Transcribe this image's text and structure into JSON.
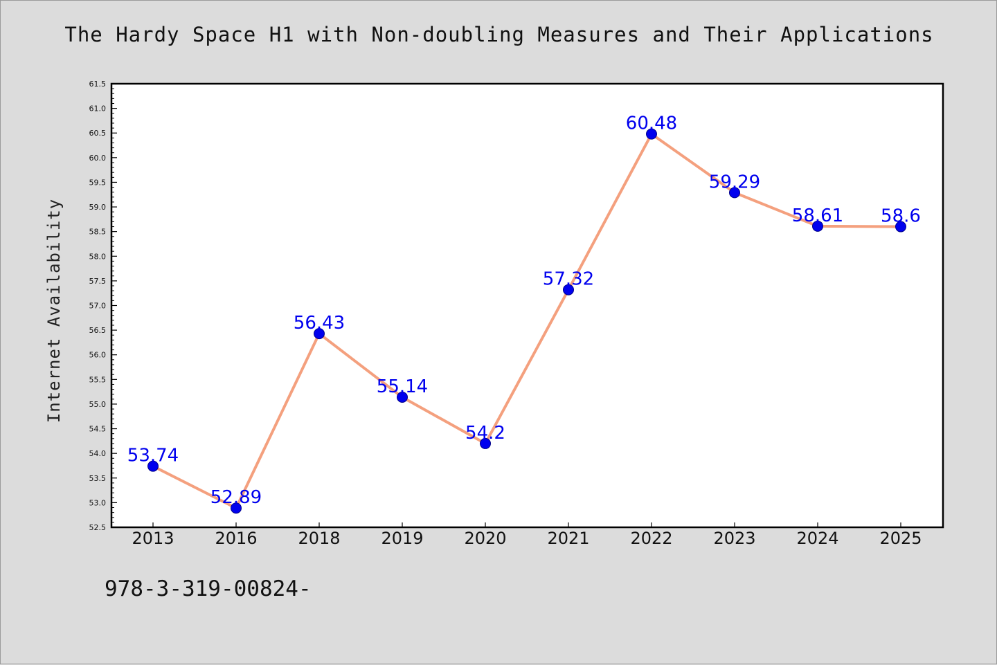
{
  "chart_data": {
    "type": "line",
    "title": "The Hardy Space H1 with Non-doubling Measures and Their Applications",
    "ylabel": "Internet Availability",
    "xlabel": "",
    "categories": [
      "2013",
      "2016",
      "2018",
      "2019",
      "2020",
      "2021",
      "2022",
      "2023",
      "2024",
      "2025"
    ],
    "values": [
      53.74,
      52.89,
      56.43,
      55.14,
      54.2,
      57.32,
      60.48,
      59.29,
      58.61,
      58.6
    ],
    "data_labels": [
      "53.74",
      "52.89",
      "56.43",
      "55.14",
      "54.2",
      "57.32",
      "60.48",
      "59.29",
      "58.61",
      "58.6"
    ],
    "ylim": [
      52.5,
      61.5
    ],
    "yticks": [
      "52.5",
      "53.0",
      "53.5",
      "54.0",
      "54.5",
      "55.0",
      "55.5",
      "56.0",
      "56.5",
      "57.0",
      "57.5",
      "58.0",
      "58.5",
      "59.0",
      "59.5",
      "60.0",
      "60.5",
      "61.0",
      "61.5"
    ],
    "grid": false,
    "legend": "none",
    "colors": {
      "line": "#f4a07e",
      "marker": "#0000ee",
      "label": "#0000ee",
      "plot_bg": "#ffffff",
      "page_bg": "#dcdcdc"
    }
  },
  "footer": {
    "isbn": "978-3-319-00824-"
  }
}
